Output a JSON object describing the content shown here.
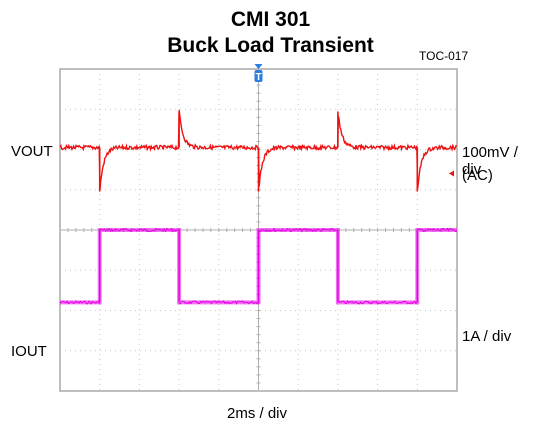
{
  "header": {
    "title_line1": "CMI 301",
    "title_line2": "Buck Load Transient",
    "figure_id": "TOC-017"
  },
  "channels": {
    "vout_label": "VOUT",
    "vout_scale": "100mV / div",
    "vout_coupling": "(AC)",
    "iout_label": "IOUT",
    "iout_scale": "1A / div"
  },
  "timebase": "2ms / div",
  "trigger_marker": "T",
  "chart_data": {
    "type": "line",
    "title": "CMI 301 Buck Load Transient",
    "xlabel": "2ms / div",
    "xlim": [
      0,
      20
    ],
    "x_unit": "ms",
    "grid": true,
    "grid_divisions": {
      "x": 10,
      "y": 8
    },
    "series": [
      {
        "name": "VOUT",
        "color": "#ee1111",
        "scale": "100mV / div",
        "coupling": "AC",
        "unit": "div",
        "baseline": 2.05,
        "load_step_up_times_ms": [
          2.0,
          10.0,
          18.0
        ],
        "load_step_down_times_ms": [
          6.0,
          14.0
        ],
        "undershoot_peak": 0.95,
        "overshoot_peak": 2.95,
        "recovery_time_constant_ms": 0.2
      },
      {
        "name": "IOUT",
        "color": "#e600e6",
        "scale": "1A / div",
        "unit": "div",
        "x": [
          0,
          2,
          2,
          6,
          6,
          10,
          10,
          14,
          14,
          18,
          18,
          20
        ],
        "values": [
          -1.8,
          -1.8,
          0.0,
          0.0,
          -1.8,
          -1.8,
          0.0,
          0.0,
          -1.8,
          -1.8,
          0.0,
          0.0
        ]
      }
    ]
  }
}
